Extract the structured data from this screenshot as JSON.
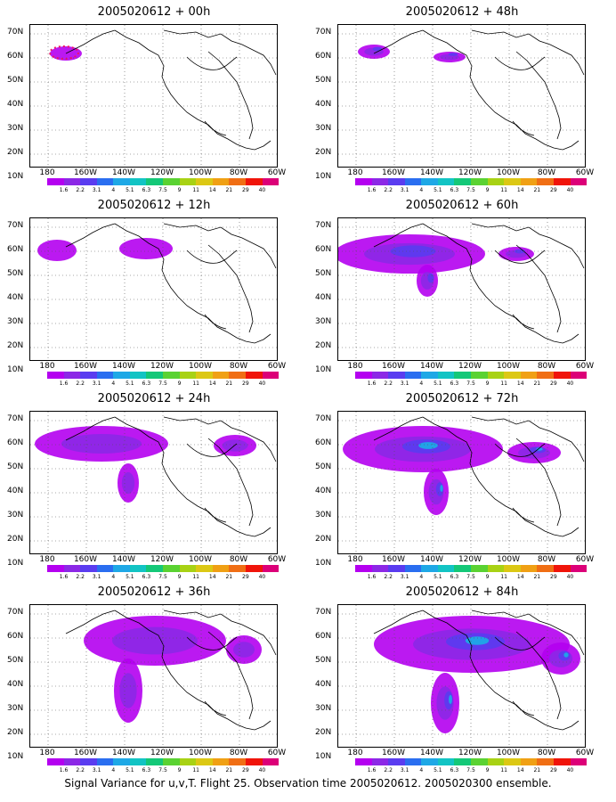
{
  "caption": "Signal Variance for u,v,T. Flight 25. Observation time 2005020612. 2005020300 ensemble.",
  "y_ticks": [
    "70N",
    "60N",
    "50N",
    "40N",
    "30N",
    "20N",
    "10N"
  ],
  "x_ticks": [
    "180",
    "160W",
    "140W",
    "120W",
    "100W",
    "80W",
    "60W"
  ],
  "colorbar": {
    "colors": [
      "#b400f0",
      "#8c28e6",
      "#5a3cf0",
      "#2a6ef0",
      "#1ea8e6",
      "#12c4c4",
      "#14c878",
      "#5ad232",
      "#a8d214",
      "#dcc814",
      "#f0a014",
      "#f06e14",
      "#f0140a",
      "#dc0078"
    ],
    "labels": [
      "1.6",
      "2.2",
      "3.1",
      "4",
      "5.1",
      "6.3",
      "7.5",
      "9",
      "11",
      "14",
      "21",
      "29",
      "40"
    ]
  },
  "panels": [
    {
      "title": "2005020612 + 00h",
      "level": 0
    },
    {
      "title": "2005020612 + 48h",
      "level": 4
    },
    {
      "title": "2005020612 + 12h",
      "level": 1
    },
    {
      "title": "2005020612 + 60h",
      "level": 5
    },
    {
      "title": "2005020612 + 24h",
      "level": 2
    },
    {
      "title": "2005020612 + 72h",
      "level": 6
    },
    {
      "title": "2005020612 + 36h",
      "level": 3
    },
    {
      "title": "2005020612 + 84h",
      "level": 7
    }
  ]
}
